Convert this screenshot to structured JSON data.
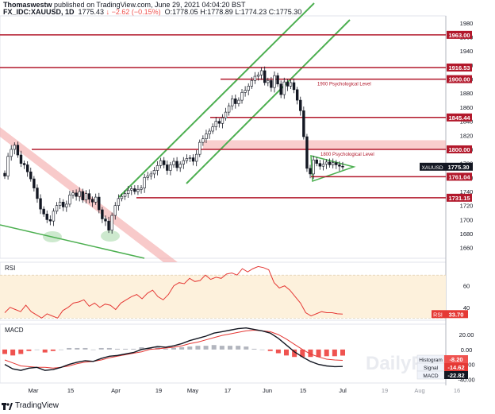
{
  "header": {
    "author": "Thomaswestw",
    "published": "published on TradingView.com, June 29, 2021 04:04:20 BST",
    "symbol": "FX_IDC:XAUUSD, 1D",
    "last": "1775.43",
    "change": "↓ −2.62 (−0.15%)",
    "ohlc": "O:1778.05 H:1778.89 L:1774.23 C:1775.30"
  },
  "footer": {
    "brand": "TradingView"
  },
  "watermark": "DailyFX",
  "colors": {
    "up": "#131722",
    "down": "#131722",
    "level": "#b2182b",
    "level_label_bg": "#b2182b",
    "channel": "#4caf50",
    "zone": "#f4a6a6",
    "rsi_band": "#fdf1dc",
    "rsi_line": "#e53935",
    "macd_line": "#131722",
    "signal_line": "#e53935",
    "hist_pos": "#b2b5be",
    "hist_neg": "#ef5350"
  },
  "chart_data": [
    {
      "type": "candlestick",
      "ylim": [
        1645,
        1990
      ],
      "yticks": [
        1660,
        1680,
        1700,
        1720,
        1740,
        1760,
        1780,
        1800,
        1820,
        1840,
        1860,
        1880,
        1900,
        1920,
        1940,
        1960,
        1980
      ],
      "xticks": [
        "Mar",
        "15",
        "Apr",
        "19",
        "May",
        "17",
        "Jun",
        "15",
        "Jul",
        "19",
        "Aug",
        "16"
      ],
      "close": [
        1762,
        1790,
        1800,
        1806,
        1792,
        1780,
        1778,
        1768,
        1758,
        1745,
        1730,
        1715,
        1708,
        1700,
        1698,
        1712,
        1720,
        1725,
        1718,
        1722,
        1735,
        1738,
        1733,
        1740,
        1728,
        1737,
        1729,
        1725,
        1732,
        1714,
        1701,
        1698,
        1685,
        1706,
        1720,
        1730,
        1733,
        1737,
        1742,
        1744,
        1740,
        1743,
        1745,
        1760,
        1762,
        1765,
        1770,
        1777,
        1784,
        1778,
        1770,
        1778,
        1783,
        1774,
        1779,
        1784,
        1787,
        1788,
        1783,
        1793,
        1810,
        1815,
        1822,
        1826,
        1832,
        1840,
        1837,
        1845,
        1853,
        1862,
        1872,
        1865,
        1870,
        1881,
        1884,
        1890,
        1898,
        1904,
        1906,
        1912,
        1895,
        1898,
        1888,
        1905,
        1893,
        1878,
        1896,
        1890,
        1895,
        1885,
        1870,
        1855,
        1818,
        1773,
        1765,
        1785,
        1780,
        1776,
        1779,
        1782,
        1778,
        1781,
        1778,
        1776,
        1775
      ],
      "levels": [
        {
          "value": 1963.0,
          "label": "1963.00"
        },
        {
          "value": 1916.53,
          "label": "1916.53"
        },
        {
          "value": 1900.0,
          "label": "1900.00",
          "note": "1900 Psychological Level"
        },
        {
          "value": 1845.44,
          "label": "1845.44"
        },
        {
          "value": 1800.0,
          "label": "1800.00",
          "note": "1800 Psychological Level"
        },
        {
          "value": 1761.04,
          "label": "1761.04"
        },
        {
          "value": 1731.15,
          "label": "1731.15"
        }
      ],
      "last_label": {
        "name": "XAUUSD",
        "value": "1775.30"
      }
    },
    {
      "type": "line",
      "title": "RSI",
      "ylim": [
        28,
        82
      ],
      "yticks": [
        40,
        60
      ],
      "band": [
        30,
        70
      ],
      "values": [
        35,
        40,
        38,
        36,
        42,
        36,
        33,
        30,
        34,
        32,
        30,
        37,
        40,
        44,
        45,
        47,
        41,
        44,
        40,
        43,
        42,
        38,
        44,
        47,
        50,
        52,
        48,
        53,
        56,
        50,
        47,
        52,
        60,
        63,
        62,
        67,
        64,
        65,
        70,
        66,
        68,
        67,
        71,
        72,
        70,
        76,
        73,
        76,
        78,
        77,
        75,
        63,
        58,
        60,
        56,
        50,
        44,
        35,
        32,
        34,
        36,
        35,
        35,
        34,
        33.7
      ],
      "last": "33.70"
    },
    {
      "type": "line",
      "title": "MACD",
      "ylim": [
        -45,
        34
      ],
      "yticks": [
        20,
        0,
        -20,
        -40
      ],
      "macd": [
        -20,
        -26,
        -28,
        -25,
        -24,
        -28,
        -27,
        -24,
        -20,
        -17,
        -15,
        -16,
        -12,
        -9,
        -8,
        -6,
        -4,
        0,
        2,
        4,
        3,
        5,
        8,
        12,
        15,
        18,
        22,
        24,
        26,
        28,
        29,
        27,
        25,
        22,
        15,
        6,
        -3,
        -10,
        -16,
        -20,
        -22,
        -23,
        -22.82
      ],
      "signal": [
        -14,
        -18,
        -22,
        -23,
        -24,
        -24,
        -25,
        -24,
        -22,
        -19,
        -17,
        -16,
        -14,
        -11,
        -9,
        -7,
        -5,
        -3,
        0,
        1,
        2,
        3,
        5,
        8,
        10,
        13,
        16,
        19,
        21,
        23,
        25,
        26,
        25,
        24,
        20,
        14,
        7,
        0,
        -6,
        -10,
        -13,
        -14,
        -14.62
      ],
      "histogram": [
        -6,
        -8,
        -6,
        -2,
        0,
        -4,
        -2,
        0,
        2,
        2,
        2,
        0,
        2,
        2,
        1,
        1,
        1,
        3,
        2,
        3,
        1,
        2,
        3,
        4,
        5,
        5,
        6,
        5,
        5,
        5,
        4,
        1,
        0,
        -2,
        -5,
        -8,
        -10,
        -10,
        -10,
        -10,
        -9,
        -9,
        -8.2
      ],
      "legend": [
        {
          "name": "Histogram",
          "value": "-8.20"
        },
        {
          "name": "Signal",
          "value": "-14.62"
        },
        {
          "name": "MACD",
          "value": "-22.82"
        }
      ]
    }
  ]
}
